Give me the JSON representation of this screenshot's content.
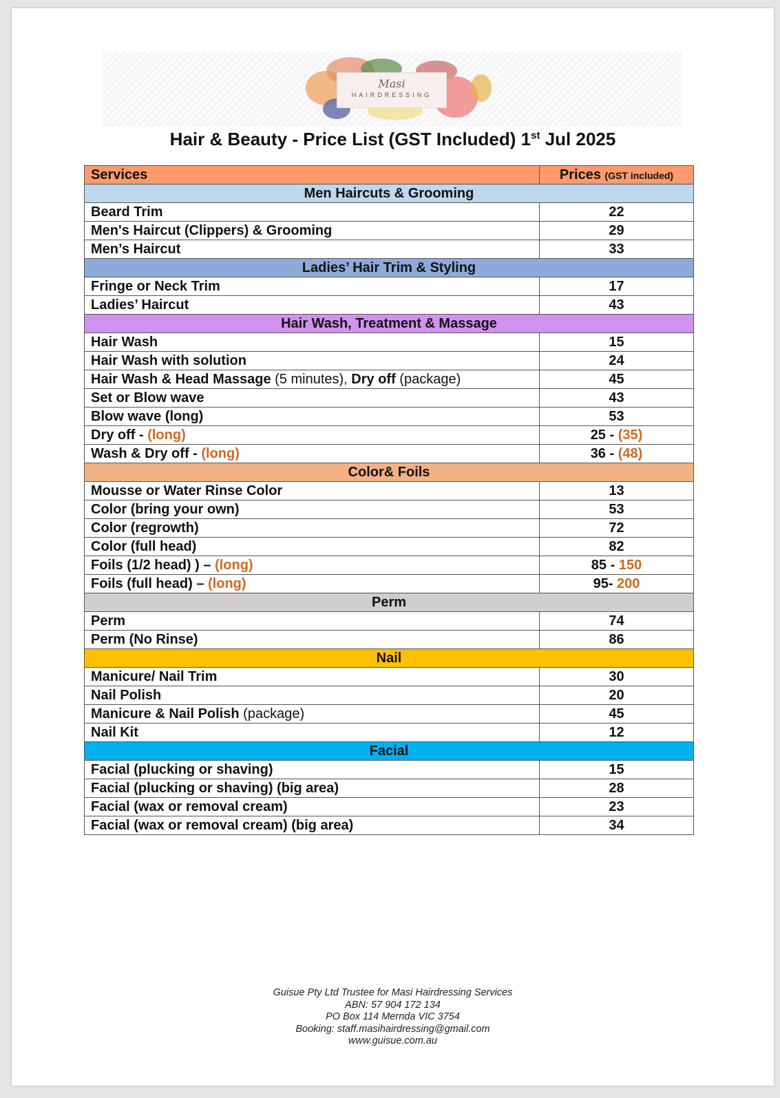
{
  "logo": {
    "name": "Masi",
    "subtitle": "HAIRDRESSING"
  },
  "title": {
    "main": "Hair & Beauty - Price List (GST Included) 1",
    "sup": "st",
    "tail": " Jul 2025"
  },
  "table": {
    "header": {
      "services": "Services",
      "prices": "Prices",
      "prices_note": "(GST included)",
      "color": "#fc9a6b"
    },
    "sections": [
      {
        "title": "Men Haircuts & Grooming",
        "color": "#bdd7ee",
        "rows": [
          {
            "service": [
              {
                "t": "Beard Trim",
                "s": "b"
              }
            ],
            "price": [
              {
                "t": "22",
                "s": "b"
              }
            ]
          },
          {
            "service": [
              {
                "t": "Men's Haircut (Clippers) & Grooming",
                "s": "b"
              }
            ],
            "price": [
              {
                "t": "29",
                "s": "b"
              }
            ]
          },
          {
            "service": [
              {
                "t": "Men’s Haircut",
                "s": "b"
              }
            ],
            "price": [
              {
                "t": "33",
                "s": "b"
              }
            ]
          }
        ]
      },
      {
        "title": "Ladies’ Hair Trim & Styling",
        "color": "#8eaadb",
        "rows": [
          {
            "service": [
              {
                "t": "Fringe or Neck Trim",
                "s": "b"
              }
            ],
            "price": [
              {
                "t": "17",
                "s": "b"
              }
            ]
          },
          {
            "service": [
              {
                "t": "Ladies’ Haircut",
                "s": "b"
              }
            ],
            "price": [
              {
                "t": "43",
                "s": "b"
              }
            ]
          }
        ]
      },
      {
        "title": "Hair Wash, Treatment & Massage",
        "color": "#d291f0",
        "rows": [
          {
            "service": [
              {
                "t": "Hair Wash",
                "s": "b"
              }
            ],
            "price": [
              {
                "t": "15",
                "s": "b"
              }
            ]
          },
          {
            "service": [
              {
                "t": "Hair Wash with solution",
                "s": "b"
              }
            ],
            "price": [
              {
                "t": "24",
                "s": "b"
              }
            ]
          },
          {
            "service": [
              {
                "t": "Hair Wash & Head Massage",
                "s": "b"
              },
              {
                "t": " (5 minutes), ",
                "s": "n"
              },
              {
                "t": "Dry off",
                "s": "b"
              },
              {
                "t": " (package)",
                "s": "n"
              }
            ],
            "price": [
              {
                "t": "45",
                "s": "b"
              }
            ]
          },
          {
            "service": [
              {
                "t": "Set or Blow wave",
                "s": "b"
              }
            ],
            "price": [
              {
                "t": "43",
                "s": "b"
              }
            ]
          },
          {
            "service": [
              {
                "t": "Blow wave (long)",
                "s": "b"
              }
            ],
            "price": [
              {
                "t": "53",
                "s": "b"
              }
            ]
          },
          {
            "service": [
              {
                "t": "Dry off - ",
                "s": "b"
              },
              {
                "t": "(long)",
                "s": "o"
              }
            ],
            "price": [
              {
                "t": "25 - ",
                "s": "b"
              },
              {
                "t": "(35)",
                "s": "o"
              }
            ]
          },
          {
            "service": [
              {
                "t": "Wash & Dry off - ",
                "s": "b"
              },
              {
                "t": "(long)",
                "s": "o"
              }
            ],
            "price": [
              {
                "t": "36 - ",
                "s": "b"
              },
              {
                "t": "(48)",
                "s": "o"
              }
            ]
          }
        ]
      },
      {
        "title": "Color& Foils",
        "color": "#f4b183",
        "rows": [
          {
            "service": [
              {
                "t": "Mousse or Water Rinse Color",
                "s": "b"
              }
            ],
            "price": [
              {
                "t": "13",
                "s": "b"
              }
            ]
          },
          {
            "service": [
              {
                "t": "Color (bring your own)",
                "s": "b"
              }
            ],
            "price": [
              {
                "t": "53",
                "s": "b"
              }
            ]
          },
          {
            "service": [
              {
                "t": "Color (regrowth)",
                "s": "b"
              }
            ],
            "price": [
              {
                "t": "72",
                "s": "b"
              }
            ]
          },
          {
            "service": [
              {
                "t": "Color (full head)",
                "s": "b"
              }
            ],
            "price": [
              {
                "t": "82",
                "s": "b"
              }
            ]
          },
          {
            "service": [
              {
                "t": "Foils (1/2 head) ) – ",
                "s": "b"
              },
              {
                "t": "(long)",
                "s": "o"
              }
            ],
            "price": [
              {
                "t": "85 - ",
                "s": "b"
              },
              {
                "t": "150",
                "s": "o"
              }
            ]
          },
          {
            "service": [
              {
                "t": "Foils (full head) – ",
                "s": "b"
              },
              {
                "t": "(long)",
                "s": "o"
              }
            ],
            "price": [
              {
                "t": "95- ",
                "s": "b"
              },
              {
                "t": "200",
                "s": "o"
              }
            ]
          }
        ]
      },
      {
        "title": "Perm",
        "color": "#d0cece",
        "rows": [
          {
            "service": [
              {
                "t": "Perm",
                "s": "b"
              }
            ],
            "price": [
              {
                "t": "74",
                "s": "b"
              }
            ]
          },
          {
            "service": [
              {
                "t": "Perm (No Rinse)",
                "s": "b"
              }
            ],
            "price": [
              {
                "t": "86",
                "s": "b"
              }
            ]
          }
        ]
      },
      {
        "title": "Nail",
        "color": "#ffc000",
        "rows": [
          {
            "service": [
              {
                "t": "Manicure/ Nail Trim",
                "s": "b"
              }
            ],
            "price": [
              {
                "t": "30",
                "s": "b"
              }
            ]
          },
          {
            "service": [
              {
                "t": "Nail Polish",
                "s": "b"
              }
            ],
            "price": [
              {
                "t": "20",
                "s": "b"
              }
            ]
          },
          {
            "service": [
              {
                "t": "Manicure & Nail Polish",
                "s": "b"
              },
              {
                "t": " (package)",
                "s": "n"
              }
            ],
            "price": [
              {
                "t": "45",
                "s": "b"
              }
            ]
          },
          {
            "service": [
              {
                "t": "Nail Kit",
                "s": "b"
              }
            ],
            "price": [
              {
                "t": "12",
                "s": "b"
              }
            ]
          }
        ]
      },
      {
        "title": "Facial",
        "color": "#00b0f0",
        "rows": [
          {
            "service": [
              {
                "t": "Facial (plucking or shaving)",
                "s": "b"
              }
            ],
            "price": [
              {
                "t": "15",
                "s": "b"
              }
            ]
          },
          {
            "service": [
              {
                "t": "Facial (plucking or shaving) (big area)",
                "s": "b"
              }
            ],
            "price": [
              {
                "t": "28",
                "s": "b"
              }
            ]
          },
          {
            "service": [
              {
                "t": "Facial (wax or removal cream)",
                "s": "b"
              }
            ],
            "price": [
              {
                "t": "23",
                "s": "b"
              }
            ]
          },
          {
            "service": [
              {
                "t": "Facial (wax or removal cream) (big area)",
                "s": "b"
              }
            ],
            "price": [
              {
                "t": "34",
                "s": "b"
              }
            ]
          }
        ]
      }
    ]
  },
  "footer": {
    "lines": [
      "Guisue Pty Ltd Trustee for Masi Hairdressing Services",
      "ABN: 57 904 172 134",
      "PO Box 114 Mernda VIC 3754",
      "Booking: staff.masihairdressing@gmail.com",
      "www.guisue.com.au"
    ]
  }
}
